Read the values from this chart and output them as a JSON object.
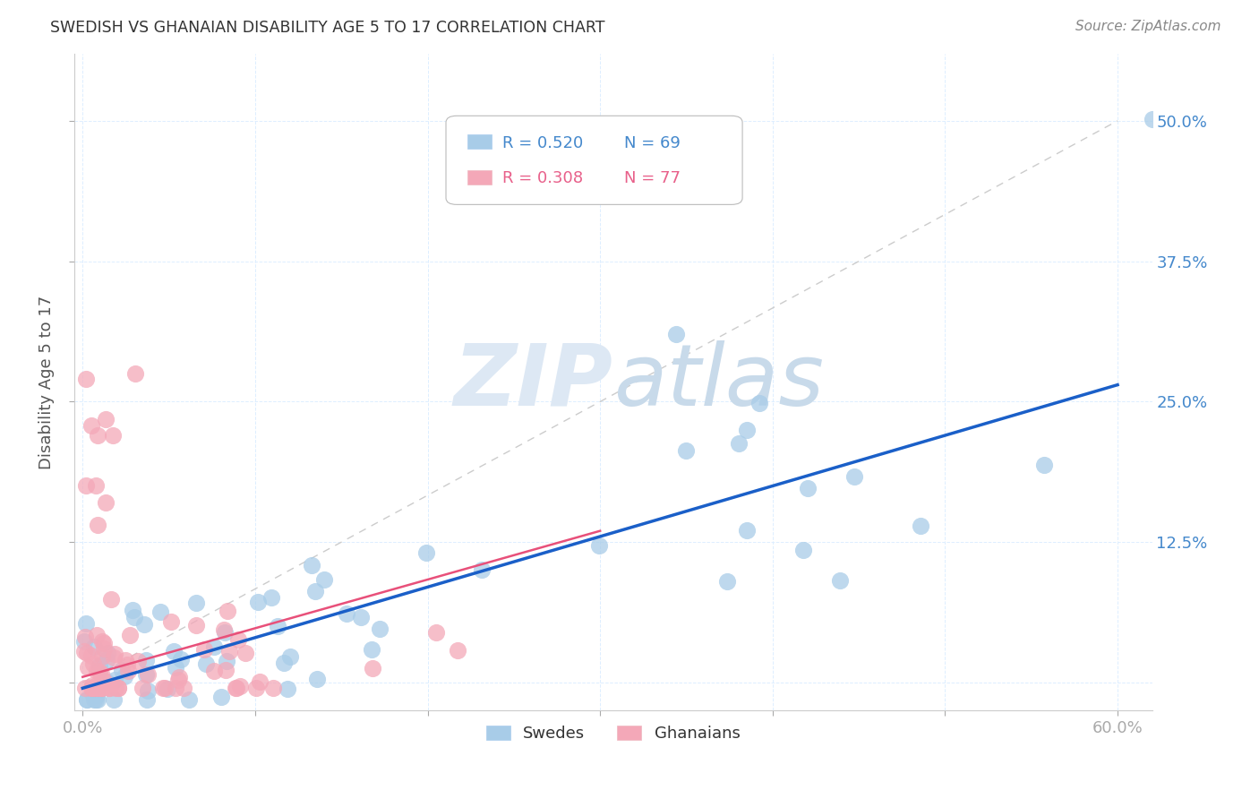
{
  "title": "SWEDISH VS GHANAIAN DISABILITY AGE 5 TO 17 CORRELATION CHART",
  "source": "Source: ZipAtlas.com",
  "ylabel": "Disability Age 5 to 17",
  "xlim": [
    -0.005,
    0.62
  ],
  "ylim": [
    -0.025,
    0.56
  ],
  "xticks": [
    0.0,
    0.1,
    0.2,
    0.3,
    0.4,
    0.5,
    0.6
  ],
  "xtick_labels": [
    "0.0%",
    "",
    "",
    "",
    "",
    "",
    "60.0%"
  ],
  "yticks": [
    0.0,
    0.125,
    0.25,
    0.375,
    0.5
  ],
  "ytick_labels_right": [
    "12.5%",
    "25.0%",
    "37.5%",
    "50.0%"
  ],
  "legend_r_blue": "R = 0.520",
  "legend_n_blue": "N = 69",
  "legend_r_pink": "R = 0.308",
  "legend_n_pink": "N = 77",
  "swedes_color": "#a8cce8",
  "ghanaians_color": "#f4a8b8",
  "trend_blue_color": "#1a5fc8",
  "trend_pink_color": "#e8507a",
  "trend_diag_color": "#cccccc",
  "watermark": "ZIPatlas",
  "background_color": "#ffffff",
  "grid_color": "#ddeeff",
  "tick_label_color": "#4488cc",
  "title_color": "#333333",
  "source_color": "#888888",
  "ylabel_color": "#555555",
  "swedes_label": "Swedes",
  "ghanaians_label": "Ghanaians",
  "blue_trend_start_y": -0.005,
  "blue_trend_end_y": 0.265,
  "pink_trend_start_y": 0.005,
  "pink_trend_end_y": 0.135
}
